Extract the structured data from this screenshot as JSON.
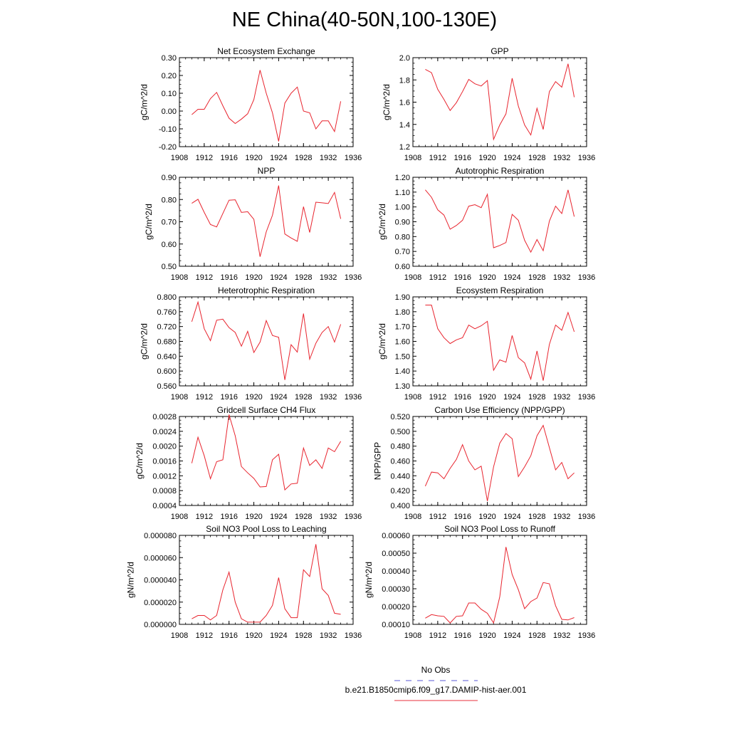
{
  "page_title": "NE China(40-50N,100-130E)",
  "legend": [
    {
      "label": "No Obs",
      "color": "#5a5ad6",
      "style": "dashed"
    },
    {
      "label": "b.e21.B1850cmip6.f09_g17.DAMIP-hist-aer.001",
      "color": "#e8323c",
      "style": "solid"
    }
  ],
  "series_color": "#e8242e",
  "chart_data": [
    {
      "type": "line",
      "title": "Net Ecosystem Exchange",
      "ylabel": "gC/m^2/d",
      "xlim": [
        1908,
        1936
      ],
      "ylim": [
        -0.2,
        0.3
      ],
      "xticks": [
        "1908",
        "1912",
        "1916",
        "1920",
        "1924",
        "1928",
        "1932",
        "1936"
      ],
      "yticks": [
        "-0.20",
        "-0.10",
        "0.00",
        "0.10",
        "0.20",
        "0.30"
      ],
      "x": [
        1910,
        1911,
        1912,
        1913,
        1914,
        1915,
        1916,
        1917,
        1918,
        1919,
        1920,
        1921,
        1922,
        1923,
        1924,
        1925,
        1926,
        1927,
        1928,
        1929,
        1930,
        1931,
        1932,
        1933,
        1934
      ],
      "values": [
        -0.02,
        0.01,
        0.01,
        0.07,
        0.105,
        0.03,
        -0.04,
        -0.07,
        -0.045,
        -0.015,
        0.065,
        0.23,
        0.1,
        -0.01,
        -0.17,
        0.045,
        0.1,
        0.135,
        0.0,
        -0.01,
        -0.1,
        -0.055,
        -0.055,
        -0.115,
        0.055
      ]
    },
    {
      "type": "line",
      "title": "GPP",
      "ylabel": "gC/m^2/d",
      "xlim": [
        1908,
        1936
      ],
      "ylim": [
        1.2,
        2.0
      ],
      "xticks": [
        "1908",
        "1912",
        "1916",
        "1920",
        "1924",
        "1928",
        "1932",
        "1936"
      ],
      "yticks": [
        "1.2",
        "1.4",
        "1.6",
        "1.8",
        "2.0"
      ],
      "x": [
        1910,
        1911,
        1912,
        1913,
        1914,
        1915,
        1916,
        1917,
        1918,
        1919,
        1920,
        1921,
        1922,
        1923,
        1924,
        1925,
        1926,
        1927,
        1928,
        1929,
        1930,
        1931,
        1932,
        1933,
        1934
      ],
      "values": [
        1.895,
        1.865,
        1.715,
        1.625,
        1.525,
        1.595,
        1.695,
        1.805,
        1.765,
        1.745,
        1.795,
        1.265,
        1.395,
        1.495,
        1.815,
        1.565,
        1.395,
        1.305,
        1.545,
        1.355,
        1.695,
        1.785,
        1.735,
        1.945,
        1.645
      ]
    },
    {
      "type": "line",
      "title": "NPP",
      "ylabel": "gC/m^2/d",
      "xlim": [
        1908,
        1936
      ],
      "ylim": [
        0.5,
        0.9
      ],
      "xticks": [
        "1908",
        "1912",
        "1916",
        "1920",
        "1924",
        "1928",
        "1932",
        "1936"
      ],
      "yticks": [
        "0.50",
        "0.60",
        "0.70",
        "0.80",
        "0.90"
      ],
      "x": [
        1910,
        1911,
        1912,
        1913,
        1914,
        1915,
        1916,
        1917,
        1918,
        1919,
        1920,
        1921,
        1922,
        1923,
        1924,
        1925,
        1926,
        1927,
        1928,
        1929,
        1930,
        1931,
        1932,
        1933,
        1934
      ],
      "values": [
        0.783,
        0.801,
        0.742,
        0.688,
        0.677,
        0.737,
        0.797,
        0.799,
        0.742,
        0.745,
        0.711,
        0.543,
        0.655,
        0.729,
        0.863,
        0.645,
        0.627,
        0.612,
        0.768,
        0.652,
        0.788,
        0.785,
        0.782,
        0.832,
        0.713
      ]
    },
    {
      "type": "line",
      "title": "Autotrophic Respiration",
      "ylabel": "gC/m^2/d",
      "xlim": [
        1908,
        1936
      ],
      "ylim": [
        0.6,
        1.2
      ],
      "xticks": [
        "1908",
        "1912",
        "1916",
        "1920",
        "1924",
        "1928",
        "1932",
        "1936"
      ],
      "yticks": [
        "0.60",
        "0.70",
        "0.80",
        "0.90",
        "1.00",
        "1.10",
        "1.20"
      ],
      "x": [
        1910,
        1911,
        1912,
        1913,
        1914,
        1915,
        1916,
        1917,
        1918,
        1919,
        1920,
        1921,
        1922,
        1923,
        1924,
        1925,
        1926,
        1927,
        1928,
        1929,
        1930,
        1931,
        1932,
        1933,
        1934
      ],
      "values": [
        1.115,
        1.065,
        0.98,
        0.945,
        0.85,
        0.875,
        0.91,
        1.005,
        1.015,
        0.995,
        1.085,
        0.725,
        0.74,
        0.76,
        0.95,
        0.91,
        0.775,
        0.695,
        0.78,
        0.705,
        0.905,
        1.005,
        0.955,
        1.115,
        0.935
      ]
    },
    {
      "type": "line",
      "title": "Heterotrophic Respiration",
      "ylabel": "gC/m^2/d",
      "xlim": [
        1908,
        1936
      ],
      "ylim": [
        0.56,
        0.8
      ],
      "xticks": [
        "1908",
        "1912",
        "1916",
        "1920",
        "1924",
        "1928",
        "1932",
        "1936"
      ],
      "yticks": [
        "0.560",
        "0.600",
        "0.640",
        "0.680",
        "0.720",
        "0.760",
        "0.800"
      ],
      "x": [
        1910,
        1911,
        1912,
        1913,
        1914,
        1915,
        1916,
        1917,
        1918,
        1919,
        1920,
        1921,
        1922,
        1923,
        1924,
        1925,
        1926,
        1927,
        1928,
        1929,
        1930,
        1931,
        1932,
        1933,
        1934
      ],
      "values": [
        0.733,
        0.786,
        0.714,
        0.682,
        0.737,
        0.74,
        0.717,
        0.704,
        0.667,
        0.707,
        0.65,
        0.678,
        0.736,
        0.696,
        0.691,
        0.576,
        0.671,
        0.651,
        0.755,
        0.632,
        0.675,
        0.704,
        0.72,
        0.678,
        0.726
      ]
    },
    {
      "type": "line",
      "title": "Ecosystem Respiration",
      "ylabel": "gC/m^2/d",
      "xlim": [
        1908,
        1936
      ],
      "ylim": [
        1.3,
        1.9
      ],
      "xticks": [
        "1908",
        "1912",
        "1916",
        "1920",
        "1924",
        "1928",
        "1932",
        "1936"
      ],
      "yticks": [
        "1.30",
        "1.40",
        "1.50",
        "1.60",
        "1.70",
        "1.80",
        "1.90"
      ],
      "x": [
        1910,
        1911,
        1912,
        1913,
        1914,
        1915,
        1916,
        1917,
        1918,
        1919,
        1920,
        1921,
        1922,
        1923,
        1924,
        1925,
        1926,
        1927,
        1928,
        1929,
        1930,
        1931,
        1932,
        1933,
        1934
      ],
      "values": [
        1.845,
        1.845,
        1.685,
        1.625,
        1.585,
        1.61,
        1.625,
        1.71,
        1.685,
        1.705,
        1.735,
        1.405,
        1.475,
        1.46,
        1.64,
        1.49,
        1.455,
        1.345,
        1.535,
        1.335,
        1.58,
        1.71,
        1.675,
        1.795,
        1.665
      ]
    },
    {
      "type": "line",
      "title": "Gridcell Surface CH4 Flux",
      "ylabel": "gC/m^2/d",
      "xlim": [
        1908,
        1936
      ],
      "ylim": [
        0.0004,
        0.0028
      ],
      "xticks": [
        "1908",
        "1912",
        "1916",
        "1920",
        "1924",
        "1928",
        "1932",
        "1936"
      ],
      "yticks": [
        "0.0004",
        "0.0008",
        "0.0012",
        "0.0016",
        "0.0020",
        "0.0024",
        "0.0028"
      ],
      "x": [
        1910,
        1911,
        1912,
        1913,
        1914,
        1915,
        1916,
        1917,
        1918,
        1919,
        1920,
        1921,
        1922,
        1923,
        1924,
        1925,
        1926,
        1927,
        1928,
        1929,
        1930,
        1931,
        1932,
        1933,
        1934
      ],
      "values": [
        0.00154,
        0.00224,
        0.00174,
        0.00112,
        0.00158,
        0.00163,
        0.00285,
        0.00228,
        0.00145,
        0.00128,
        0.00113,
        0.0009,
        0.00091,
        0.00163,
        0.00178,
        0.00082,
        0.00098,
        0.001,
        0.00195,
        0.00148,
        0.00163,
        0.0014,
        0.00195,
        0.00185,
        0.00213
      ]
    },
    {
      "type": "line",
      "title": "Carbon Use Efficiency (NPP/GPP)",
      "ylabel": "NPP/GPP",
      "xlim": [
        1908,
        1936
      ],
      "ylim": [
        0.4,
        0.52
      ],
      "xticks": [
        "1908",
        "1912",
        "1916",
        "1920",
        "1924",
        "1928",
        "1932",
        "1936"
      ],
      "yticks": [
        "0.400",
        "0.420",
        "0.440",
        "0.460",
        "0.480",
        "0.500",
        "0.520"
      ],
      "x": [
        1910,
        1911,
        1912,
        1913,
        1914,
        1915,
        1916,
        1917,
        1918,
        1919,
        1920,
        1921,
        1922,
        1923,
        1924,
        1925,
        1926,
        1927,
        1928,
        1929,
        1930,
        1931,
        1932,
        1933,
        1934
      ],
      "values": [
        0.426,
        0.445,
        0.444,
        0.436,
        0.45,
        0.462,
        0.482,
        0.46,
        0.448,
        0.453,
        0.406,
        0.452,
        0.484,
        0.497,
        0.49,
        0.439,
        0.452,
        0.467,
        0.494,
        0.508,
        0.478,
        0.448,
        0.458,
        0.436,
        0.444
      ]
    },
    {
      "type": "line",
      "title": "Soil NO3 Pool Loss to Leaching",
      "ylabel": "gN/m^2/d",
      "xlim": [
        1908,
        1936
      ],
      "ylim": [
        0,
        8e-05
      ],
      "xticks": [
        "1908",
        "1912",
        "1916",
        "1920",
        "1924",
        "1928",
        "1932",
        "1936"
      ],
      "yticks": [
        "0.000000",
        "0.000020",
        "0.000040",
        "0.000060",
        "0.000080"
      ],
      "x": [
        1910,
        1911,
        1912,
        1913,
        1914,
        1915,
        1916,
        1917,
        1918,
        1919,
        1920,
        1921,
        1922,
        1923,
        1924,
        1925,
        1926,
        1927,
        1928,
        1929,
        1930,
        1931,
        1932,
        1933,
        1934
      ],
      "values": [
        5e-06,
        8e-06,
        8e-06,
        4e-06,
        8e-06,
        3.1e-05,
        4.7e-05,
        2e-05,
        5e-06,
        2e-06,
        2e-06,
        2e-06,
        8e-06,
        1.7e-05,
        4.2e-05,
        1.4e-05,
        6e-06,
        6e-06,
        4.9e-05,
        4.3e-05,
        7.2e-05,
        3.2e-05,
        2.6e-05,
        1e-05,
        9e-06
      ]
    },
    {
      "type": "line",
      "title": "Soil NO3 Pool Loss to Runoff",
      "ylabel": "gN/m^2/d",
      "xlim": [
        1908,
        1936
      ],
      "ylim": [
        0.0001,
        0.0006
      ],
      "xticks": [
        "1908",
        "1912",
        "1916",
        "1920",
        "1924",
        "1928",
        "1932",
        "1936"
      ],
      "yticks": [
        "0.00010",
        "0.00020",
        "0.00030",
        "0.00040",
        "0.00050",
        "0.00060"
      ],
      "x": [
        1910,
        1911,
        1912,
        1913,
        1914,
        1915,
        1916,
        1917,
        1918,
        1919,
        1920,
        1921,
        1922,
        1923,
        1924,
        1925,
        1926,
        1927,
        1928,
        1929,
        1930,
        1931,
        1932,
        1933,
        1934
      ],
      "values": [
        0.000135,
        0.000155,
        0.000148,
        0.000145,
        0.000108,
        0.000145,
        0.000148,
        0.00022,
        0.00022,
        0.000185,
        0.000162,
        0.000108,
        0.000255,
        0.000535,
        0.00038,
        0.000295,
        0.000188,
        0.000228,
        0.000248,
        0.000335,
        0.000328,
        0.000205,
        0.000128,
        0.000125,
        0.000138
      ]
    }
  ]
}
